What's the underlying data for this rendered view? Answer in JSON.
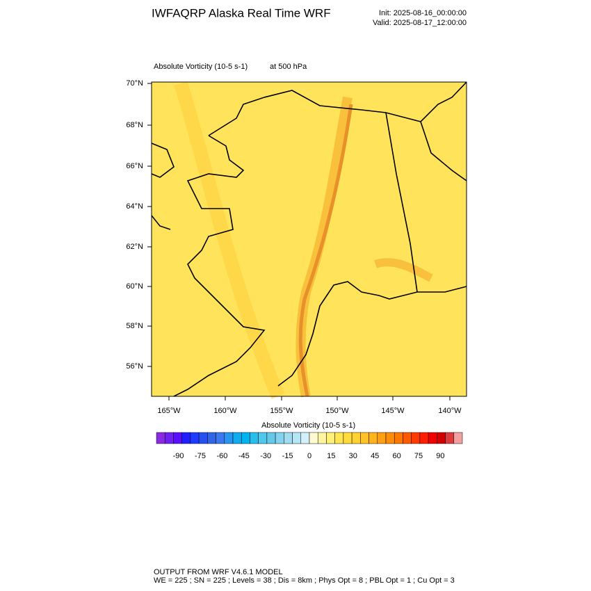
{
  "header": {
    "title": "IWFAQRP Alaska Real Time WRF",
    "init": "Init: 2025-08-16_00:00:00",
    "valid": "Valid: 2025-08-17_12:00:00"
  },
  "field": {
    "name": "Absolute Vorticity   (10-5 s-1)",
    "level": "at   500 hPa"
  },
  "map": {
    "lat_labels": [
      "70°N",
      "68°N",
      "66°N",
      "64°N",
      "62°N",
      "60°N",
      "58°N",
      "56°N"
    ],
    "lon_labels": [
      "165°W",
      "160°W",
      "155°W",
      "150°W",
      "145°W",
      "140°W"
    ]
  },
  "colorbar": {
    "title": "Absolute Vorticity  (10-5 s-1)",
    "ticks": [
      -90,
      -75,
      -60,
      -45,
      -30,
      -15,
      0,
      15,
      30,
      45,
      60,
      75,
      90
    ],
    "colors": [
      "#8a2be2",
      "#7020f0",
      "#5a10ff",
      "#2020ff",
      "#1e3cff",
      "#2850f0",
      "#3264e6",
      "#3c78f0",
      "#2896f0",
      "#14aaf0",
      "#00b4f0",
      "#28beeb",
      "#50c8eb",
      "#64c8e6",
      "#82d2f0",
      "#a0dcf0",
      "#b4e6f5",
      "#d2f0fa",
      "#fffad2",
      "#fff5a0",
      "#fff078",
      "#ffe650",
      "#ffdc3c",
      "#ffd232",
      "#ffc328",
      "#ffb41e",
      "#ffa014",
      "#ff8c0a",
      "#ff7800",
      "#ff5a00",
      "#ff3c00",
      "#ff1e00",
      "#f00000",
      "#d20000",
      "#dc3c3c",
      "#f4a0a0"
    ]
  },
  "footer": {
    "line1": "OUTPUT FROM WRF V4.6.1 MODEL",
    "line2": "WE = 225 ; SN = 225 ; Levels = 38 ; Dis = 8km ; Phys Opt = 8 ; PBL Opt = 1 ; Cu Opt = 3"
  }
}
